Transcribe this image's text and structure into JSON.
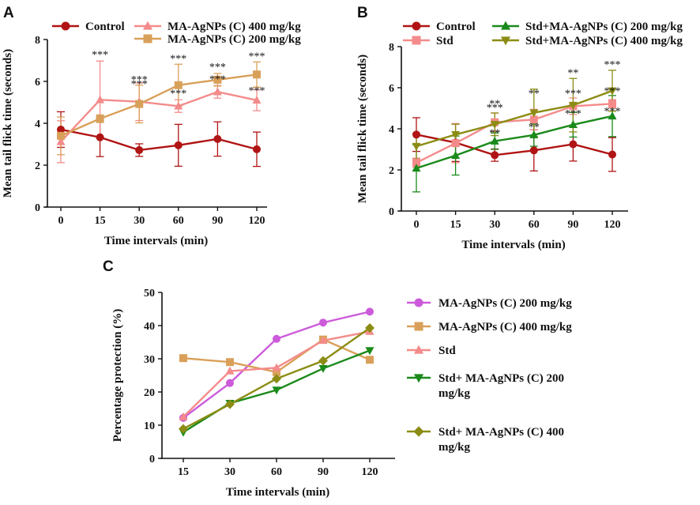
{
  "chart_data": [
    {
      "panel": "A",
      "type": "line",
      "categories": [
        "0",
        "15",
        "30",
        "60",
        "90",
        "120"
      ],
      "xlabel": "Time intervals (min)",
      "ylabel": "Mean tail flick time (seconds)",
      "ylim": [
        0,
        8
      ],
      "yticks": [
        "0",
        "2",
        "4",
        "6",
        "8"
      ],
      "grid": false,
      "legend_position": "top",
      "series": [
        {
          "name": "Control",
          "marker": "circle",
          "color": "#b01414",
          "values": [
            3.7,
            3.33,
            2.72,
            2.95,
            3.25,
            2.76
          ],
          "errors": [
            0.85,
            0.92,
            0.3,
            1.0,
            0.82,
            0.82
          ]
        },
        {
          "name": "MA-AgNPs (C) 400 mg/kg",
          "marker": "triangle",
          "color": "#f48b8b",
          "values": [
            3.12,
            5.12,
            5.03,
            4.82,
            5.5,
            5.1
          ],
          "errors": [
            1.0,
            1.85,
            0.9,
            0.3,
            0.3,
            0.5
          ],
          "annotations": [
            "",
            "***",
            "***",
            "***",
            "***",
            "***"
          ]
        },
        {
          "name": "MA-AgNPs (C) 200 mg/kg",
          "marker": "square",
          "color": "#d9a05a",
          "values": [
            3.4,
            4.22,
            4.92,
            5.82,
            6.08,
            6.33
          ],
          "errors": [
            0.9,
            0.18,
            0.9,
            1.0,
            0.3,
            0.6
          ],
          "annotations": [
            "",
            "",
            "***",
            "***",
            "***",
            "***"
          ]
        }
      ]
    },
    {
      "panel": "B",
      "type": "line",
      "categories": [
        "0",
        "15",
        "30",
        "60",
        "90",
        "120"
      ],
      "xlabel": "Time intervals (min)",
      "ylabel": "Mean tail flick time (seconds)",
      "ylim": [
        0,
        8
      ],
      "yticks": [
        "0",
        "2",
        "4",
        "6",
        "8"
      ],
      "grid": false,
      "legend_position": "top",
      "series": [
        {
          "name": "Control",
          "marker": "circle",
          "color": "#b01414",
          "values": [
            3.72,
            3.33,
            2.72,
            2.95,
            3.25,
            2.75
          ],
          "errors": [
            0.82,
            0.92,
            0.3,
            1.0,
            0.82,
            0.82
          ]
        },
        {
          "name": "Std",
          "marker": "square",
          "color": "#f48b8b",
          "values": [
            2.35,
            3.3,
            4.32,
            4.45,
            5.1,
            5.22
          ],
          "errors": [
            0.22,
            0.95,
            0.45,
            0.5,
            0.4,
            0.2
          ],
          "annotations": [
            "",
            "",
            "***",
            "",
            "***",
            "***"
          ]
        },
        {
          "name": "Std+MA-AgNPs (C) 200 mg/kg",
          "marker": "triangle",
          "color": "#1a8a1a",
          "values": [
            2.08,
            2.7,
            3.4,
            3.7,
            4.2,
            4.62
          ],
          "errors": [
            1.15,
            0.95,
            0.4,
            0.55,
            0.6,
            1.0
          ],
          "annotations": [
            "",
            "",
            "**",
            "**",
            "***",
            "***"
          ]
        },
        {
          "name": "Std+MA-AgNPs (C) 400 mg/kg",
          "marker": "triangle-down",
          "color": "#8c8c14",
          "values": [
            3.15,
            3.72,
            4.22,
            4.78,
            5.15,
            5.85
          ],
          "errors": [
            0.62,
            0.5,
            0.55,
            1.15,
            1.3,
            1.0
          ],
          "annotations": [
            "",
            "",
            "**",
            "**",
            "**",
            "***"
          ]
        }
      ]
    },
    {
      "panel": "C",
      "type": "line",
      "categories": [
        "15",
        "30",
        "60",
        "90",
        "120"
      ],
      "xlabel": "Time intervals (min)",
      "ylabel": "Percentage protection (%)",
      "ylim": [
        0,
        50
      ],
      "yticks": [
        "0",
        "10",
        "20",
        "30",
        "40",
        "50"
      ],
      "grid": false,
      "legend_position": "right",
      "series": [
        {
          "name": "MA-AgNPs (C) 200 mg/kg",
          "marker": "circle",
          "color": "#cc5bdb",
          "values": [
            12.2,
            22.7,
            36.0,
            40.9,
            44.2
          ]
        },
        {
          "name": "MA-AgNPs (C) 400 mg/kg",
          "marker": "square",
          "color": "#d9a05a",
          "values": [
            30.2,
            29.0,
            26.0,
            35.8,
            29.7
          ]
        },
        {
          "name": "Std",
          "marker": "triangle",
          "color": "#f48b8b",
          "values": [
            12.5,
            26.3,
            27.3,
            35.5,
            38.2
          ]
        },
        {
          "name": "Std+ MA-AgNPs (C) 200 mg/kg",
          "legend_lines": [
            "Std+ MA-AgNPs (C) 200",
            "mg/kg"
          ],
          "marker": "triangle-down",
          "color": "#1a8a1a",
          "values": [
            7.9,
            16.6,
            20.6,
            27.1,
            32.5
          ]
        },
        {
          "name": "Std+ MA-AgNPs (C) 400 mg/kg",
          "legend_lines": [
            "Std+ MA-AgNPs (C) 400",
            "mg/kg"
          ],
          "marker": "diamond",
          "color": "#8c8c14",
          "values": [
            8.9,
            16.3,
            24.0,
            29.4,
            39.3
          ]
        }
      ]
    }
  ]
}
